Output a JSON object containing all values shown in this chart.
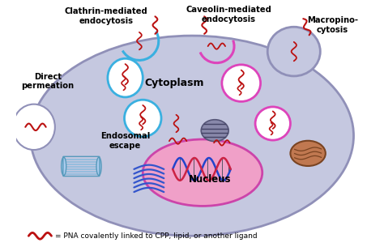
{
  "bg_color": "#ffffff",
  "cell_color": "#c5c8e0",
  "cell_edge_color": "#9090b8",
  "nucleus_color": "#f0a0c8",
  "nucleus_edge_color": "#cc44aa",
  "clathrin_color": "#3ab0e0",
  "caveolin_color": "#dd44bb",
  "pna_color": "#bb1111",
  "legend_text": "= PNA covalently linked to CPP, lipid, or another ligand",
  "labels": {
    "clathrin": "Clathrin-mediated\nendocytosis",
    "caveolin": "Caveolin-mediated\nendocytosis",
    "macropino": "Macropino-\ncytosis",
    "direct": "Direct\npermeation",
    "endosomal": "Endosomal\nescape",
    "cytoplasm": "Cytoplasm",
    "nucleus": "Nucleus"
  },
  "figsize": [
    4.74,
    3.05
  ],
  "dpi": 100
}
